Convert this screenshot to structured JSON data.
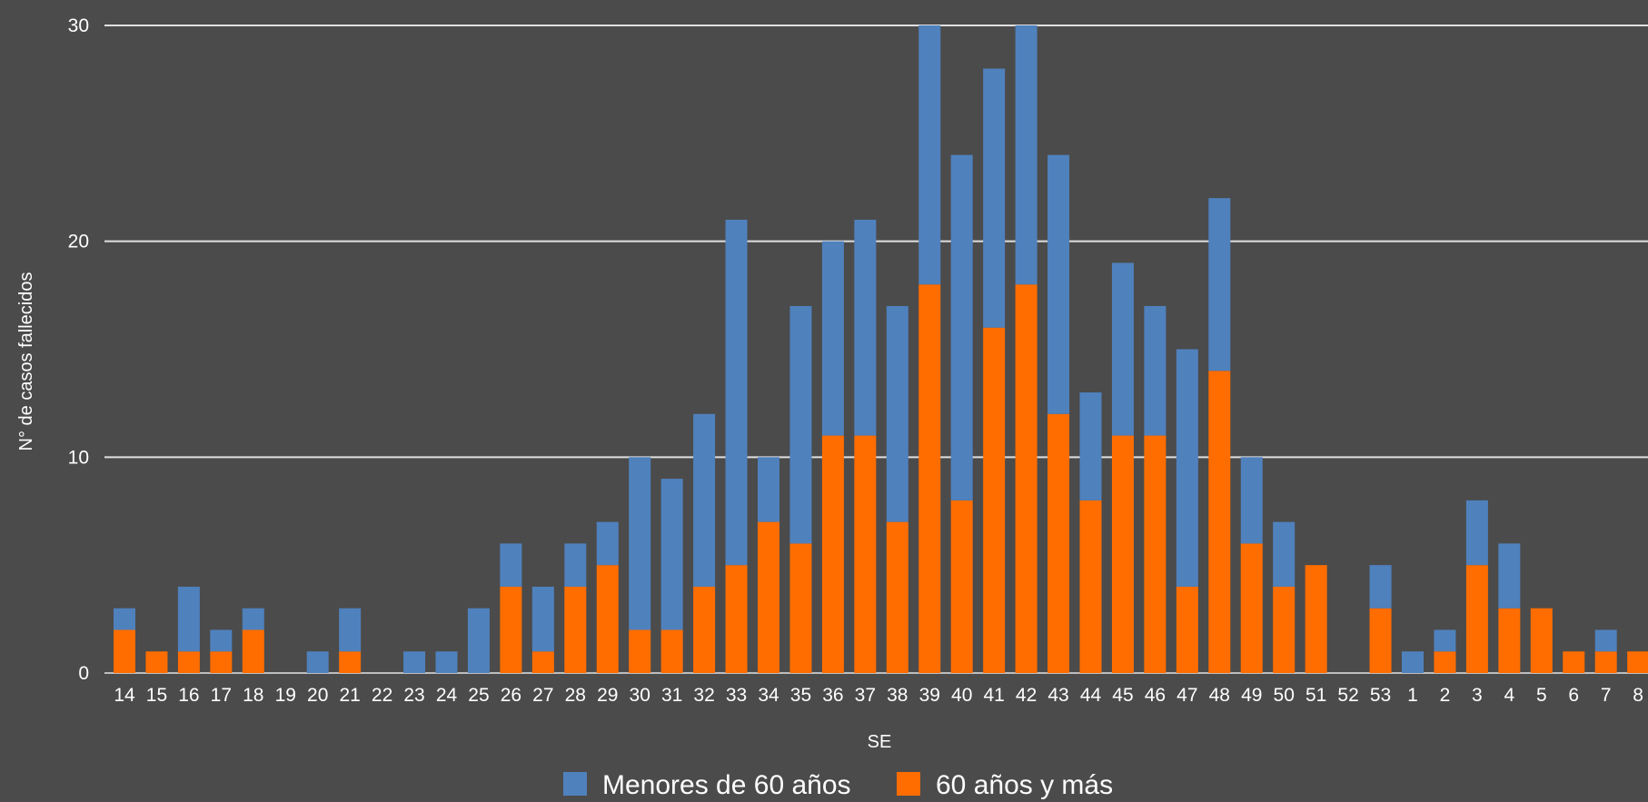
{
  "chart_data": {
    "type": "bar",
    "stacked": true,
    "xlabel": "SE",
    "ylabel": "N° de casos fallecidos",
    "ylim": [
      0,
      30
    ],
    "yticks": [
      0,
      10,
      20,
      30
    ],
    "grid": true,
    "legend_position": "bottom",
    "categories": [
      "14",
      "15",
      "16",
      "17",
      "18",
      "19",
      "20",
      "21",
      "22",
      "23",
      "24",
      "25",
      "26",
      "27",
      "28",
      "29",
      "30",
      "31",
      "32",
      "33",
      "34",
      "35",
      "36",
      "37",
      "38",
      "39",
      "40",
      "41",
      "42",
      "43",
      "44",
      "45",
      "46",
      "47",
      "48",
      "49",
      "50",
      "51",
      "52",
      "53",
      "1",
      "2",
      "3",
      "4",
      "5",
      "6",
      "7",
      "8"
    ],
    "series": [
      {
        "name": "60 años y más",
        "color": "#ff6d00",
        "values": [
          2,
          1,
          1,
          1,
          2,
          0,
          0,
          1,
          0,
          0,
          0,
          0,
          4,
          1,
          4,
          5,
          2,
          2,
          4,
          5,
          7,
          6,
          11,
          11,
          7,
          18,
          8,
          16,
          18,
          12,
          8,
          11,
          11,
          4,
          14,
          6,
          4,
          5,
          0,
          3,
          0,
          1,
          5,
          3,
          3,
          1,
          1,
          1
        ]
      },
      {
        "name": "Menores de 60 años",
        "color": "#4f81bd",
        "values": [
          1,
          0,
          3,
          1,
          1,
          0,
          1,
          2,
          0,
          1,
          1,
          3,
          2,
          3,
          2,
          2,
          8,
          7,
          8,
          16,
          3,
          11,
          9,
          10,
          10,
          12,
          16,
          12,
          12,
          12,
          5,
          8,
          6,
          11,
          8,
          4,
          3,
          0,
          0,
          2,
          1,
          1,
          3,
          3,
          0,
          0,
          1,
          0
        ]
      }
    ]
  },
  "legend": {
    "items": [
      "Menores de 60 años",
      "60 años y más"
    ]
  }
}
